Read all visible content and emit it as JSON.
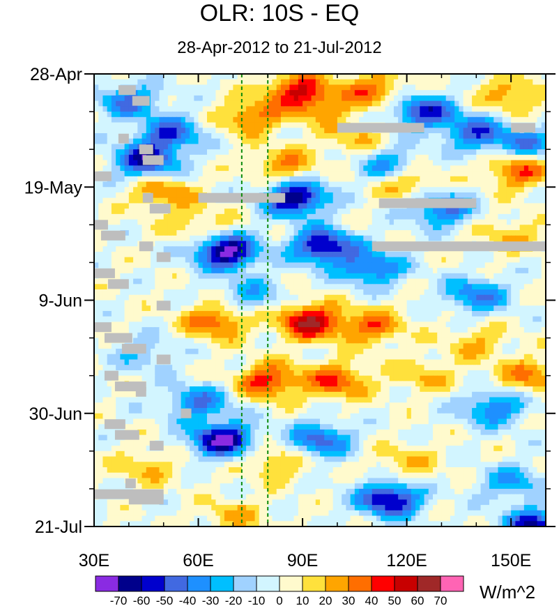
{
  "chart_data": {
    "type": "heatmap",
    "title": "OLR: 10S - EQ",
    "subtitle": "28-Apr-2012 to 21-Jul-2012",
    "x_range": [
      30,
      160
    ],
    "x_ticks": [
      30,
      60,
      90,
      120,
      150
    ],
    "x_tick_labels": [
      "30E",
      "60E",
      "90E",
      "120E",
      "150E"
    ],
    "y_ticks": [
      "28-Apr",
      "19-May",
      "9-Jun",
      "30-Jun",
      "21-Jul"
    ],
    "y_range_days": [
      0,
      84
    ],
    "reference_lines_lon": [
      72.5,
      80
    ],
    "reference_line_color": "#0a8a0a",
    "colorbar": {
      "unit_label": "W/m^2",
      "levels": [
        "-70",
        "-60",
        "-50",
        "-40",
        "-30",
        "-20",
        "-10",
        "0",
        "10",
        "20",
        "30",
        "40",
        "50",
        "60",
        "70"
      ],
      "colors": [
        "#8a2be2",
        "#00008b",
        "#0000cd",
        "#4169e1",
        "#1e90ff",
        "#00bfff",
        "#a0d2ff",
        "#d2f5ff",
        "#fffacd",
        "#ffe13c",
        "#ffa500",
        "#ff6e00",
        "#ff0000",
        "#c80000",
        "#a02828",
        "#ff64b4"
      ]
    },
    "features": [
      {
        "lon": 88,
        "day": 3,
        "value": 45
      },
      {
        "lon": 110,
        "day": 3,
        "value": 35
      },
      {
        "lon": 150,
        "day": 4,
        "value": 30
      },
      {
        "lon": 40,
        "day": 5,
        "value": -40
      },
      {
        "lon": 95,
        "day": 6,
        "value": 25
      },
      {
        "lon": 125,
        "day": 7,
        "value": -55
      },
      {
        "lon": 75,
        "day": 8,
        "value": 35
      },
      {
        "lon": 52,
        "day": 11,
        "value": -45
      },
      {
        "lon": 140,
        "day": 11,
        "value": -45
      },
      {
        "lon": 105,
        "day": 12,
        "value": 20
      },
      {
        "lon": 155,
        "day": 13,
        "value": -35
      },
      {
        "lon": 45,
        "day": 16,
        "value": -60
      },
      {
        "lon": 85,
        "day": 17,
        "value": 30
      },
      {
        "lon": 115,
        "day": 17,
        "value": -35
      },
      {
        "lon": 152,
        "day": 18,
        "value": 40
      },
      {
        "lon": 120,
        "day": 20,
        "value": 30
      },
      {
        "lon": 88,
        "day": 23,
        "value": -70
      },
      {
        "lon": 50,
        "day": 22,
        "value": 30
      },
      {
        "lon": 130,
        "day": 25,
        "value": -45
      },
      {
        "lon": 68,
        "day": 33,
        "value": -75
      },
      {
        "lon": 96,
        "day": 32,
        "value": -65
      },
      {
        "lon": 60,
        "day": 28,
        "value": 20
      },
      {
        "lon": 150,
        "day": 30,
        "value": 20
      },
      {
        "lon": 110,
        "day": 36,
        "value": -45
      },
      {
        "lon": 75,
        "day": 41,
        "value": -25
      },
      {
        "lon": 140,
        "day": 41,
        "value": -40
      },
      {
        "lon": 92,
        "day": 46,
        "value": 60
      },
      {
        "lon": 65,
        "day": 46,
        "value": 40
      },
      {
        "lon": 110,
        "day": 47,
        "value": 35
      },
      {
        "lon": 140,
        "day": 50,
        "value": 20
      },
      {
        "lon": 45,
        "day": 52,
        "value": -20
      },
      {
        "lon": 100,
        "day": 57,
        "value": 40
      },
      {
        "lon": 80,
        "day": 57,
        "value": 45
      },
      {
        "lon": 125,
        "day": 56,
        "value": 20
      },
      {
        "lon": 155,
        "day": 56,
        "value": 30
      },
      {
        "lon": 60,
        "day": 61,
        "value": -40
      },
      {
        "lon": 145,
        "day": 62,
        "value": -40
      },
      {
        "lon": 67,
        "day": 68,
        "value": -70
      },
      {
        "lon": 95,
        "day": 68,
        "value": -45
      },
      {
        "lon": 82,
        "day": 72,
        "value": 25
      },
      {
        "lon": 120,
        "day": 72,
        "value": 20
      },
      {
        "lon": 45,
        "day": 73,
        "value": 20
      },
      {
        "lon": 115,
        "day": 79,
        "value": -65
      },
      {
        "lon": 150,
        "day": 76,
        "value": -30
      },
      {
        "lon": 70,
        "day": 82,
        "value": 20
      },
      {
        "lon": 157,
        "day": 84,
        "value": -60
      }
    ],
    "missing_segments": [
      {
        "lon_start": 100,
        "lon_end": 125,
        "day": 10
      },
      {
        "lon_start": 150,
        "lon_end": 157,
        "day": 10
      },
      {
        "lon_start": 60,
        "lon_end": 85,
        "day": 23
      },
      {
        "lon_start": 112,
        "lon_end": 140,
        "day": 24
      },
      {
        "lon_start": 110,
        "lon_end": 160,
        "day": 32
      },
      {
        "lon_start": 37,
        "lon_end": 42,
        "day": 3
      },
      {
        "lon_start": 41,
        "lon_end": 46,
        "day": 5
      },
      {
        "lon_start": 37,
        "lon_end": 40,
        "day": 12
      },
      {
        "lon_start": 43,
        "lon_end": 47,
        "day": 14
      },
      {
        "lon_start": 44,
        "lon_end": 50,
        "day": 16
      },
      {
        "lon_start": 30,
        "lon_end": 35,
        "day": 19
      },
      {
        "lon_start": 44,
        "lon_end": 47,
        "day": 23
      },
      {
        "lon_start": 46,
        "lon_end": 52,
        "day": 25
      },
      {
        "lon_start": 30,
        "lon_end": 34,
        "day": 28
      },
      {
        "lon_start": 32,
        "lon_end": 39,
        "day": 30
      },
      {
        "lon_start": 43,
        "lon_end": 47,
        "day": 32
      },
      {
        "lon_start": 48,
        "lon_end": 52,
        "day": 34
      },
      {
        "lon_start": 30,
        "lon_end": 36,
        "day": 37
      },
      {
        "lon_start": 34,
        "lon_end": 40,
        "day": 39
      },
      {
        "lon_start": 48,
        "lon_end": 52,
        "day": 43
      },
      {
        "lon_start": 30,
        "lon_end": 35,
        "day": 47
      },
      {
        "lon_start": 33,
        "lon_end": 41,
        "day": 49
      },
      {
        "lon_start": 38,
        "lon_end": 45,
        "day": 51
      },
      {
        "lon_start": 48,
        "lon_end": 52,
        "day": 53
      },
      {
        "lon_start": 33,
        "lon_end": 37,
        "day": 56
      },
      {
        "lon_start": 36,
        "lon_end": 45,
        "day": 58
      },
      {
        "lon_start": 42,
        "lon_end": 45,
        "day": 59
      },
      {
        "lon_start": 55,
        "lon_end": 58,
        "day": 63
      },
      {
        "lon_start": 33,
        "lon_end": 39,
        "day": 65
      },
      {
        "lon_start": 36,
        "lon_end": 43,
        "day": 67
      },
      {
        "lon_start": 46,
        "lon_end": 50,
        "day": 69
      },
      {
        "lon_start": 39,
        "lon_end": 42,
        "day": 76
      },
      {
        "lon_start": 30,
        "lon_end": 50,
        "day": 78
      },
      {
        "lon_start": 40,
        "lon_end": 50,
        "day": 79
      }
    ]
  }
}
